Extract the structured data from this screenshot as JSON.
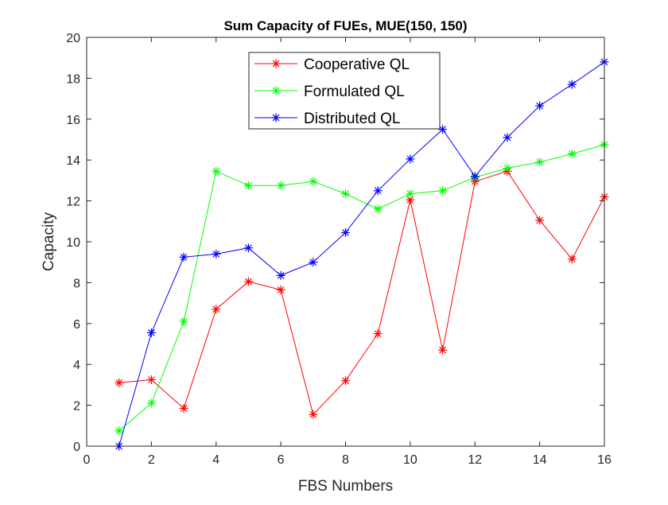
{
  "chart_data": {
    "type": "line",
    "title": "Sum Capacity of FUEs, MUE(150, 150)",
    "xlabel": "FBS Numbers",
    "ylabel": "Capacity",
    "xlim": [
      0,
      16
    ],
    "ylim": [
      0,
      20
    ],
    "xticks": [
      0,
      2,
      4,
      6,
      8,
      10,
      12,
      14,
      16
    ],
    "yticks": [
      0,
      2,
      4,
      6,
      8,
      10,
      12,
      14,
      16,
      18,
      20
    ],
    "grid": false,
    "legend_position": "top-center",
    "marker": "asterisk",
    "x": [
      1,
      2,
      3,
      4,
      5,
      6,
      7,
      8,
      9,
      10,
      11,
      12,
      13,
      14,
      15,
      16
    ],
    "series": [
      {
        "name": "Cooperative QL",
        "color": "#ff0000",
        "values": [
          3.1,
          3.25,
          1.85,
          6.7,
          8.05,
          7.65,
          1.55,
          3.2,
          5.5,
          12.05,
          4.7,
          12.95,
          13.45,
          11.05,
          9.15,
          12.2
        ]
      },
      {
        "name": "Formulated QL",
        "color": "#00ff00",
        "values": [
          0.75,
          2.1,
          6.1,
          13.45,
          12.75,
          12.75,
          12.95,
          12.35,
          11.6,
          12.35,
          12.5,
          13.15,
          13.6,
          13.9,
          14.3,
          14.75
        ]
      },
      {
        "name": "Distributed QL",
        "color": "#0000ff",
        "values": [
          0.0,
          5.55,
          9.25,
          9.4,
          9.7,
          8.35,
          9.0,
          10.45,
          12.5,
          14.05,
          15.5,
          13.2,
          15.1,
          16.65,
          17.7,
          18.8
        ]
      }
    ]
  }
}
